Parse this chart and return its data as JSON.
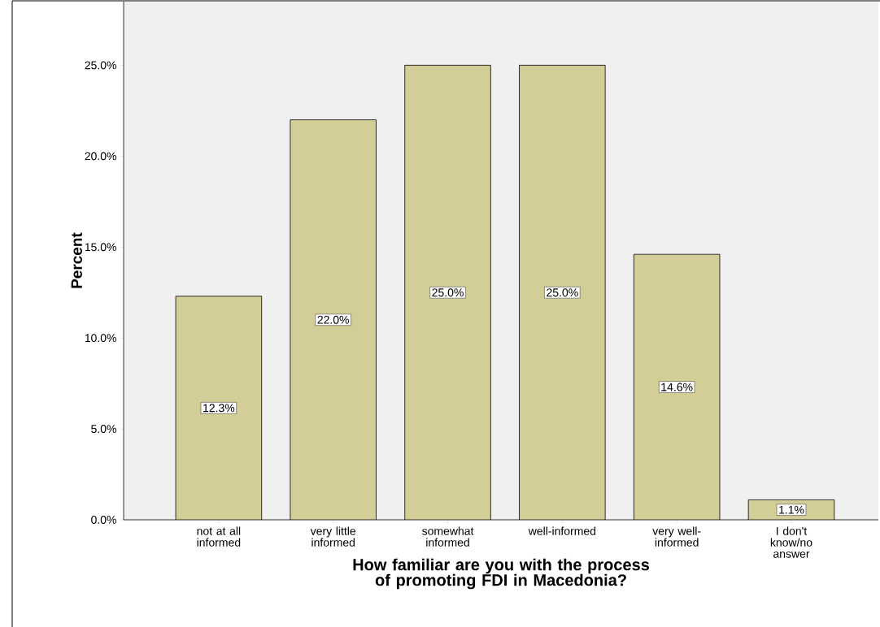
{
  "chart_data": {
    "type": "bar",
    "xlabel": "How familiar are you with the process of promoting FDI in Macedonia?",
    "ylabel": "Percent",
    "categories": [
      "not at all informed",
      "very little informed",
      "somewhat informed",
      "well-informed",
      "very well-informed",
      "I don't know/no answer"
    ],
    "values": [
      12.3,
      22.0,
      25.0,
      25.0,
      14.6,
      1.1
    ],
    "value_labels": [
      "12.3%",
      "22.0%",
      "25.0%",
      "25.0%",
      "14.6%",
      "1.1%"
    ],
    "color": "#d3ce97",
    "ylim": [
      0,
      28.5
    ],
    "yticks": [
      {
        "value": 0,
        "label": "0.0%"
      },
      {
        "value": 5,
        "label": "5.0%"
      },
      {
        "value": 10,
        "label": "10.0%"
      },
      {
        "value": 15,
        "label": "15.0%"
      },
      {
        "value": 20,
        "label": "20.0%"
      },
      {
        "value": 25,
        "label": "25.0%"
      }
    ]
  }
}
